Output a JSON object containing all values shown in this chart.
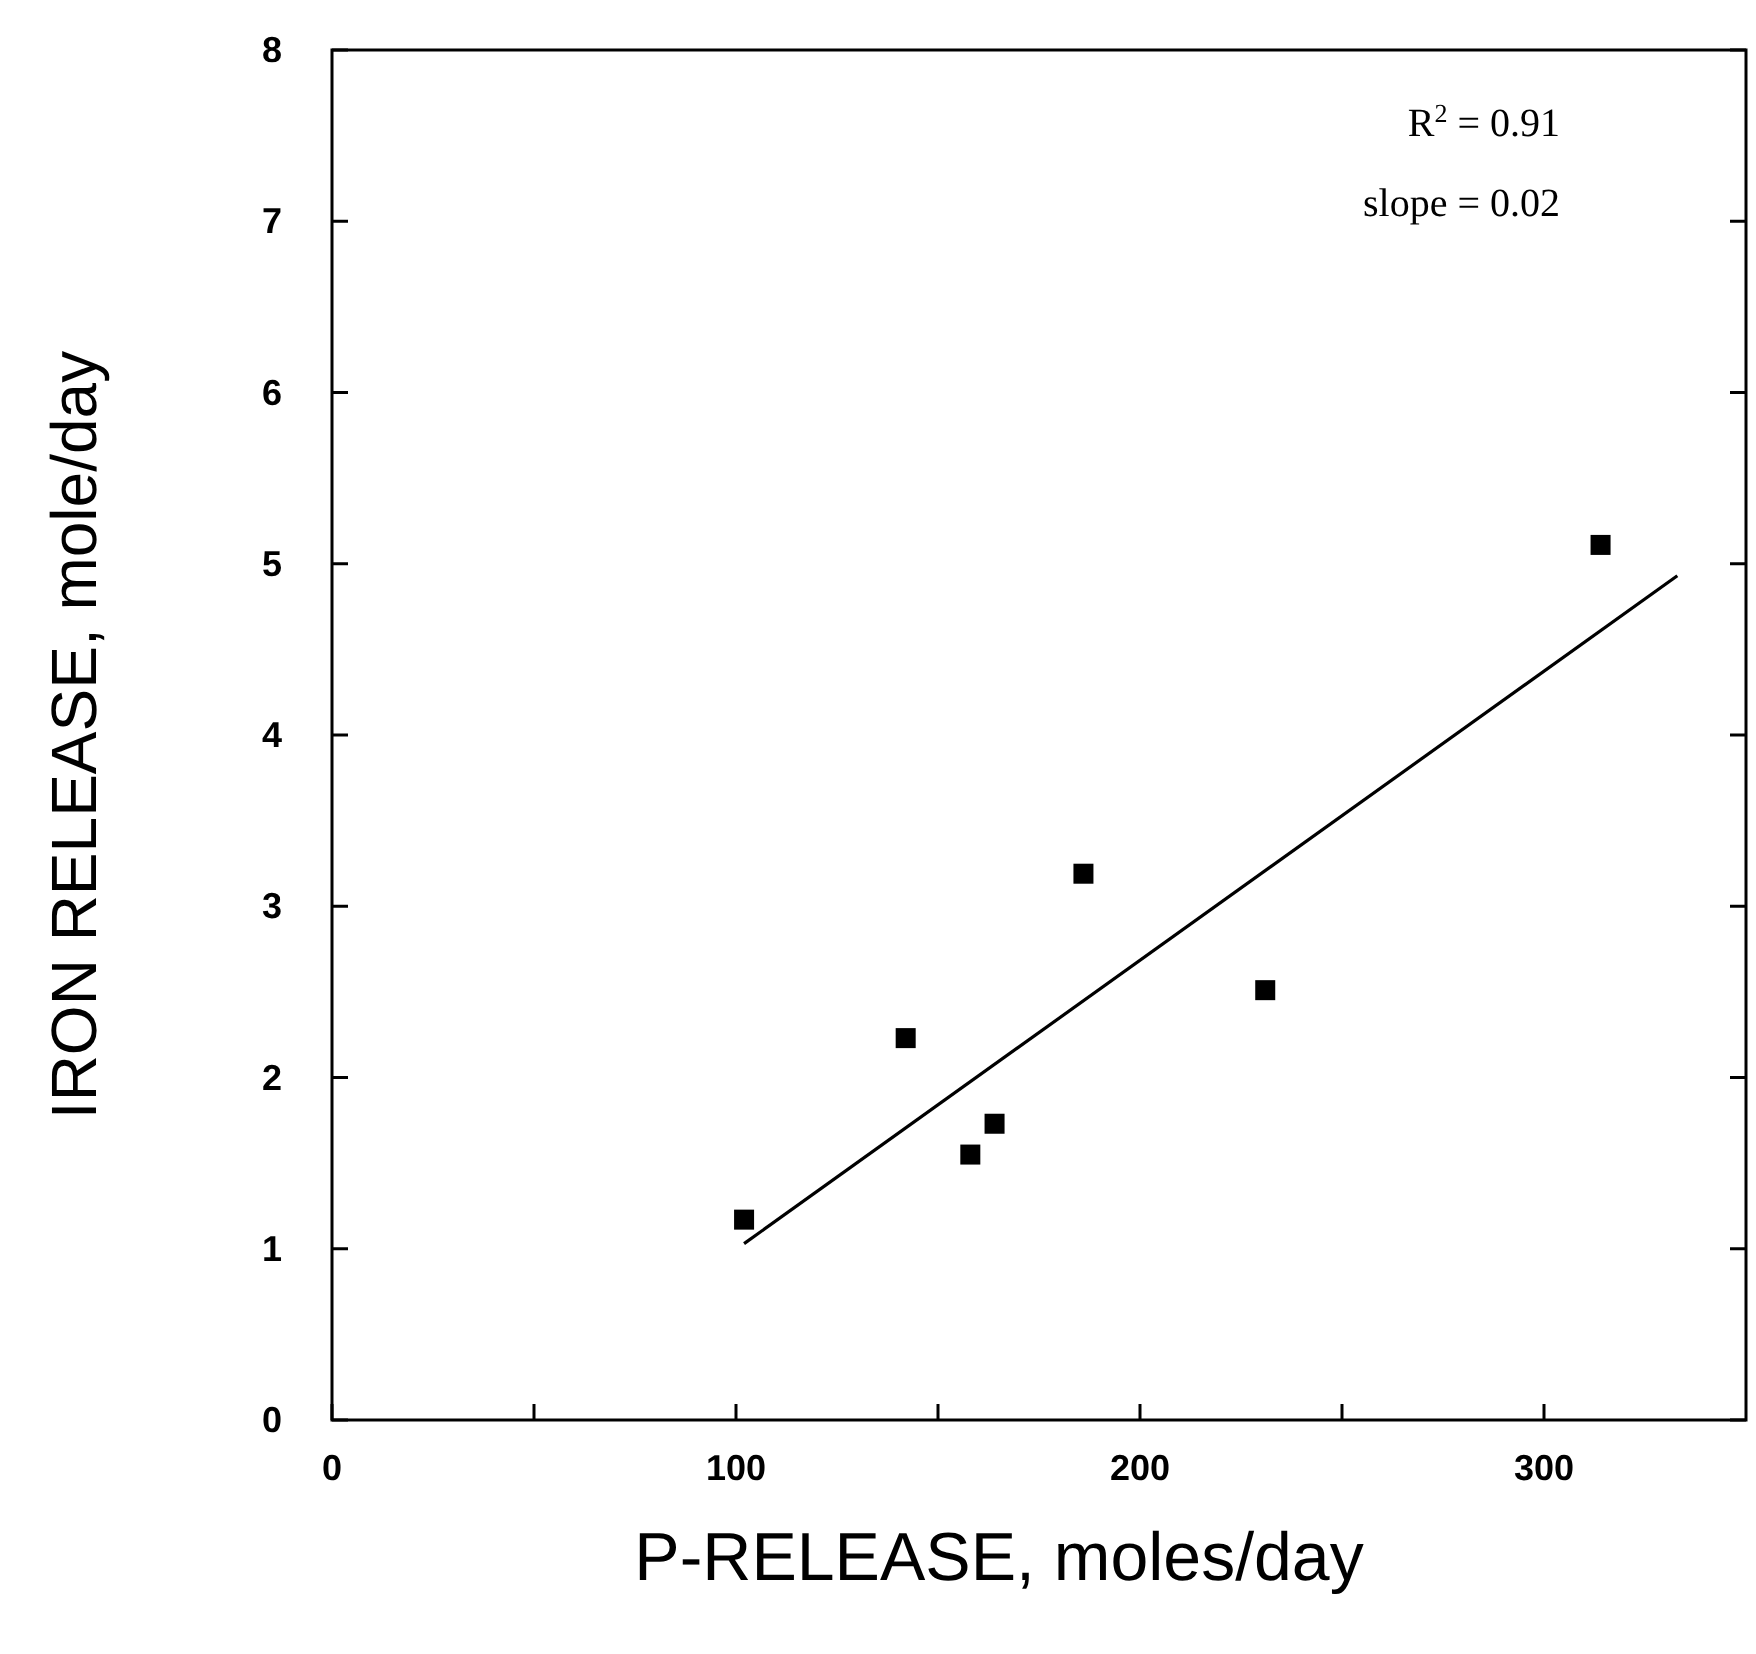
{
  "chart_data": {
    "type": "scatter",
    "xlabel": "P-RELEASE, moles/day",
    "ylabel": "IRON RELEASE, mole/day",
    "xlim": [
      0,
      350
    ],
    "ylim": [
      0,
      8
    ],
    "xticks": [
      0,
      {
        "value": 50,
        "label": null
      },
      100,
      {
        "value": 150,
        "label": null
      },
      200,
      {
        "value": 250,
        "label": null
      },
      300
    ],
    "yticks": [
      0,
      1,
      2,
      3,
      4,
      5,
      6,
      7,
      8
    ],
    "marker": "square",
    "grid": false,
    "annotations": [
      "R$^{2}$ = 0.91",
      "slope = 0.02"
    ],
    "series": [
      {
        "color": "#000000",
        "x": [
          102,
          142,
          158,
          164,
          186,
          231,
          314
        ],
        "values": [
          1.17,
          2.23,
          1.55,
          1.73,
          3.19,
          2.51,
          5.11
        ]
      },
      {
        "type": "line",
        "color": "#000000",
        "marker": "none",
        "line_style": "solid",
        "x": [
          102,
          333
        ],
        "values": [
          1.03,
          4.93
        ]
      }
    ]
  }
}
